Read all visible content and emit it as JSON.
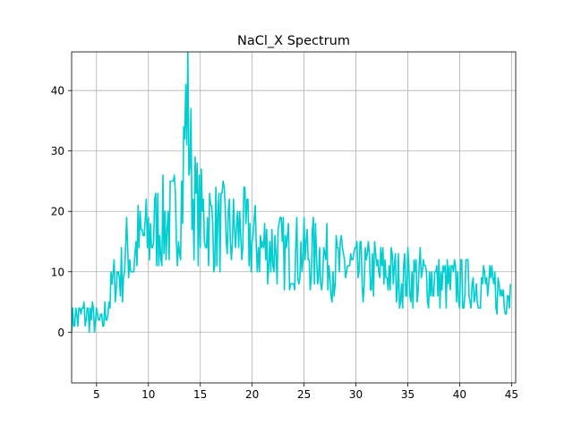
{
  "chart_data": {
    "type": "line",
    "title": "NaCl_X Spectrum",
    "xlabel": "",
    "ylabel": "",
    "xlim": [
      2.6,
      45.4
    ],
    "ylim": [
      -8.4,
      46.4
    ],
    "xticks": [
      5,
      10,
      15,
      20,
      25,
      30,
      35,
      40,
      45
    ],
    "yticks": [
      0,
      10,
      20,
      30,
      40
    ],
    "grid": true,
    "line_color": "#00CED1",
    "series": [
      {
        "anchors": [
          [
            2.6,
            2
          ],
          [
            4,
            3
          ],
          [
            5,
            2
          ],
          [
            5.5,
            1
          ],
          [
            6,
            4
          ],
          [
            6.8,
            9
          ],
          [
            7.5,
            10
          ],
          [
            8,
            14
          ],
          [
            8.5,
            11
          ],
          [
            9,
            15
          ],
          [
            10,
            16
          ],
          [
            11,
            18
          ],
          [
            12,
            18
          ],
          [
            12.8,
            19
          ],
          [
            13.3,
            24
          ],
          [
            13.5,
            32
          ],
          [
            13.7,
            39
          ],
          [
            13.9,
            33
          ],
          [
            14.3,
            22
          ],
          [
            15,
            19
          ],
          [
            16,
            18
          ],
          [
            17,
            17
          ],
          [
            18,
            16
          ],
          [
            19,
            17
          ],
          [
            20,
            15
          ],
          [
            21,
            14
          ],
          [
            22,
            14
          ],
          [
            23,
            13
          ],
          [
            24,
            13
          ],
          [
            25,
            13
          ],
          [
            26,
            13
          ],
          [
            27,
            12
          ],
          [
            28,
            11
          ],
          [
            29,
            11
          ],
          [
            30,
            10
          ],
          [
            31,
            10
          ],
          [
            32,
            10
          ],
          [
            33,
            10
          ],
          [
            34,
            9
          ],
          [
            35,
            9
          ],
          [
            36,
            9
          ],
          [
            37,
            9
          ],
          [
            38,
            8
          ],
          [
            39,
            8
          ],
          [
            40,
            8
          ],
          [
            41,
            8
          ],
          [
            42,
            8
          ],
          [
            43,
            7
          ],
          [
            44,
            7
          ],
          [
            45,
            7
          ]
        ]
      }
    ]
  }
}
